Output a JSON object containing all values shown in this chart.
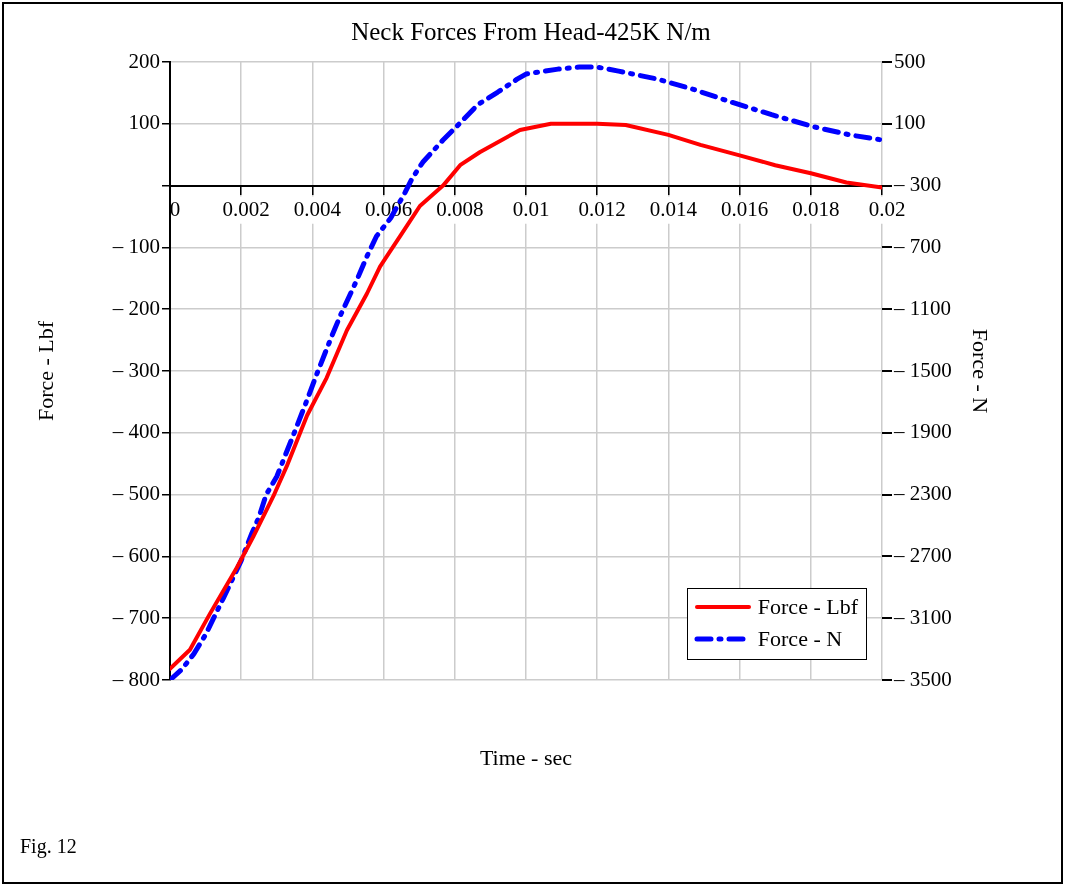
{
  "chart_data": {
    "type": "line",
    "title": "Neck Forces From Head-425K N/m",
    "xlabel": "Time - sec",
    "ylabel": "Force - Lbf",
    "y2label": "Force - N",
    "annotations": [
      "Fig. 12"
    ],
    "xlim": [
      0,
      0.02
    ],
    "xticks": [
      0,
      0.002,
      0.004,
      0.006,
      0.008,
      0.01,
      0.012,
      0.014,
      0.016,
      0.018,
      0.02
    ],
    "ylim": [
      -800,
      200
    ],
    "yticks": [
      200,
      100,
      {
        "value": 0,
        "label": null
      },
      {
        "value": -100,
        "label": "– 100"
      },
      {
        "value": -200,
        "label": "– 200"
      },
      {
        "value": -300,
        "label": "– 300"
      },
      {
        "value": -400,
        "label": "– 400"
      },
      {
        "value": -500,
        "label": "– 500"
      },
      {
        "value": -600,
        "label": "– 600"
      },
      {
        "value": -700,
        "label": "– 700"
      },
      {
        "value": -800,
        "label": "– 800"
      }
    ],
    "y2lim": [
      -3500,
      500
    ],
    "y2ticks": [
      500,
      100,
      {
        "value": -300,
        "label": "– 300"
      },
      {
        "value": -700,
        "label": "– 700"
      },
      {
        "value": -1100,
        "label": "– 1100"
      },
      {
        "value": -1500,
        "label": "– 1500"
      },
      {
        "value": -1900,
        "label": "– 1900"
      },
      {
        "value": -2300,
        "label": "– 2300"
      },
      {
        "value": -2700,
        "label": "– 2700"
      },
      {
        "value": -3100,
        "label": "– 3100"
      },
      {
        "value": -3500,
        "label": "– 3500"
      }
    ],
    "grid": true,
    "legend": "bottom right",
    "marker": "none",
    "series": [
      {
        "name": "Force - Lbf",
        "color": "#ff0000",
        "line_style": "solid",
        "x": [
          0,
          0.00056,
          0.00112,
          0.00188,
          0.00233,
          0.0029,
          0.00328,
          0.00385,
          0.0044,
          0.00497,
          0.00553,
          0.0059,
          0.00646,
          0.00702,
          0.00767,
          0.00815,
          0.0087,
          0.00983,
          0.0107,
          0.012,
          0.0128,
          0.014,
          0.0149,
          0.016,
          0.017,
          0.018,
          0.019,
          0.02
        ],
        "values": [
          -782,
          -751,
          -693,
          -618,
          -569,
          -503,
          -454,
          -372,
          -311,
          -234,
          -175,
          -131,
          -82,
          -33,
          0,
          33,
          54,
          90,
          100,
          100,
          98,
          82,
          66,
          49,
          33,
          20,
          5,
          -3
        ]
      },
      {
        "name": "Force - N",
        "color": "#0000ff",
        "line_style": "dashed",
        "axis": "y2",
        "x": [
          0,
          0.00034,
          0.00067,
          0.001,
          0.0015,
          0.002,
          0.0023,
          0.0025,
          0.0027,
          0.003,
          0.0035,
          0.0039,
          0.0041,
          0.00455,
          0.0048,
          0.00525,
          0.00553,
          0.0058,
          0.0062,
          0.0066,
          0.0068,
          0.0071,
          0.00767,
          0.0081,
          0.00865,
          0.0092,
          0.00975,
          0.01,
          0.0109,
          0.0115,
          0.012,
          0.0126,
          0.0137,
          0.0147,
          0.0158,
          0.0169,
          0.0181,
          0.0191,
          0.02
        ],
        "values": [
          -3500,
          -3429,
          -3331,
          -3206,
          -2970,
          -2727,
          -2550,
          -2445,
          -2301,
          -2183,
          -1894,
          -1658,
          -1533,
          -1271,
          -1133,
          -910,
          -759,
          -628,
          -510,
          -346,
          -254,
          -149,
          -5,
          94,
          225,
          304,
          389,
          422,
          454,
          467,
          467,
          441,
          389,
          323,
          238,
          159,
          80,
          28,
          -5
        ]
      }
    ]
  }
}
